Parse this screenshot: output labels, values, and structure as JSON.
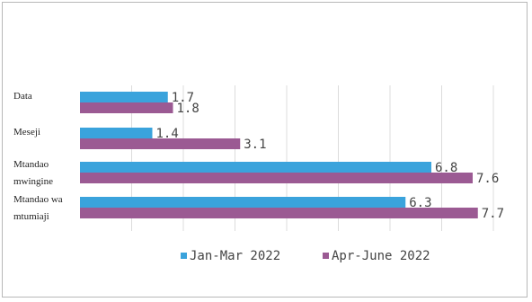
{
  "chart_data": {
    "type": "bar",
    "orientation": "horizontal",
    "categories": [
      [
        "Data"
      ],
      [
        "Meseji"
      ],
      [
        "Mtandao",
        "mwingine"
      ],
      [
        "Mtandao wa",
        "mtumiaji"
      ]
    ],
    "series": [
      {
        "name": "Jan-Mar 2022",
        "values": [
          1.7,
          1.4,
          6.8,
          6.3
        ],
        "labels": [
          "1.7",
          "1.4",
          "6.8",
          "6.3"
        ],
        "color": "#3aa3dc"
      },
      {
        "name": "Apr-June 2022",
        "values": [
          1.8,
          3.1,
          7.6,
          7.7
        ],
        "labels": [
          "1.8",
          "3.1",
          "7.6",
          "7.7"
        ],
        "color": "#9b5a93"
      }
    ],
    "xlim": [
      0,
      8
    ],
    "gridlines": "vertical",
    "legend_position": "bottom",
    "xlabel": "",
    "ylabel": "",
    "title": ""
  }
}
